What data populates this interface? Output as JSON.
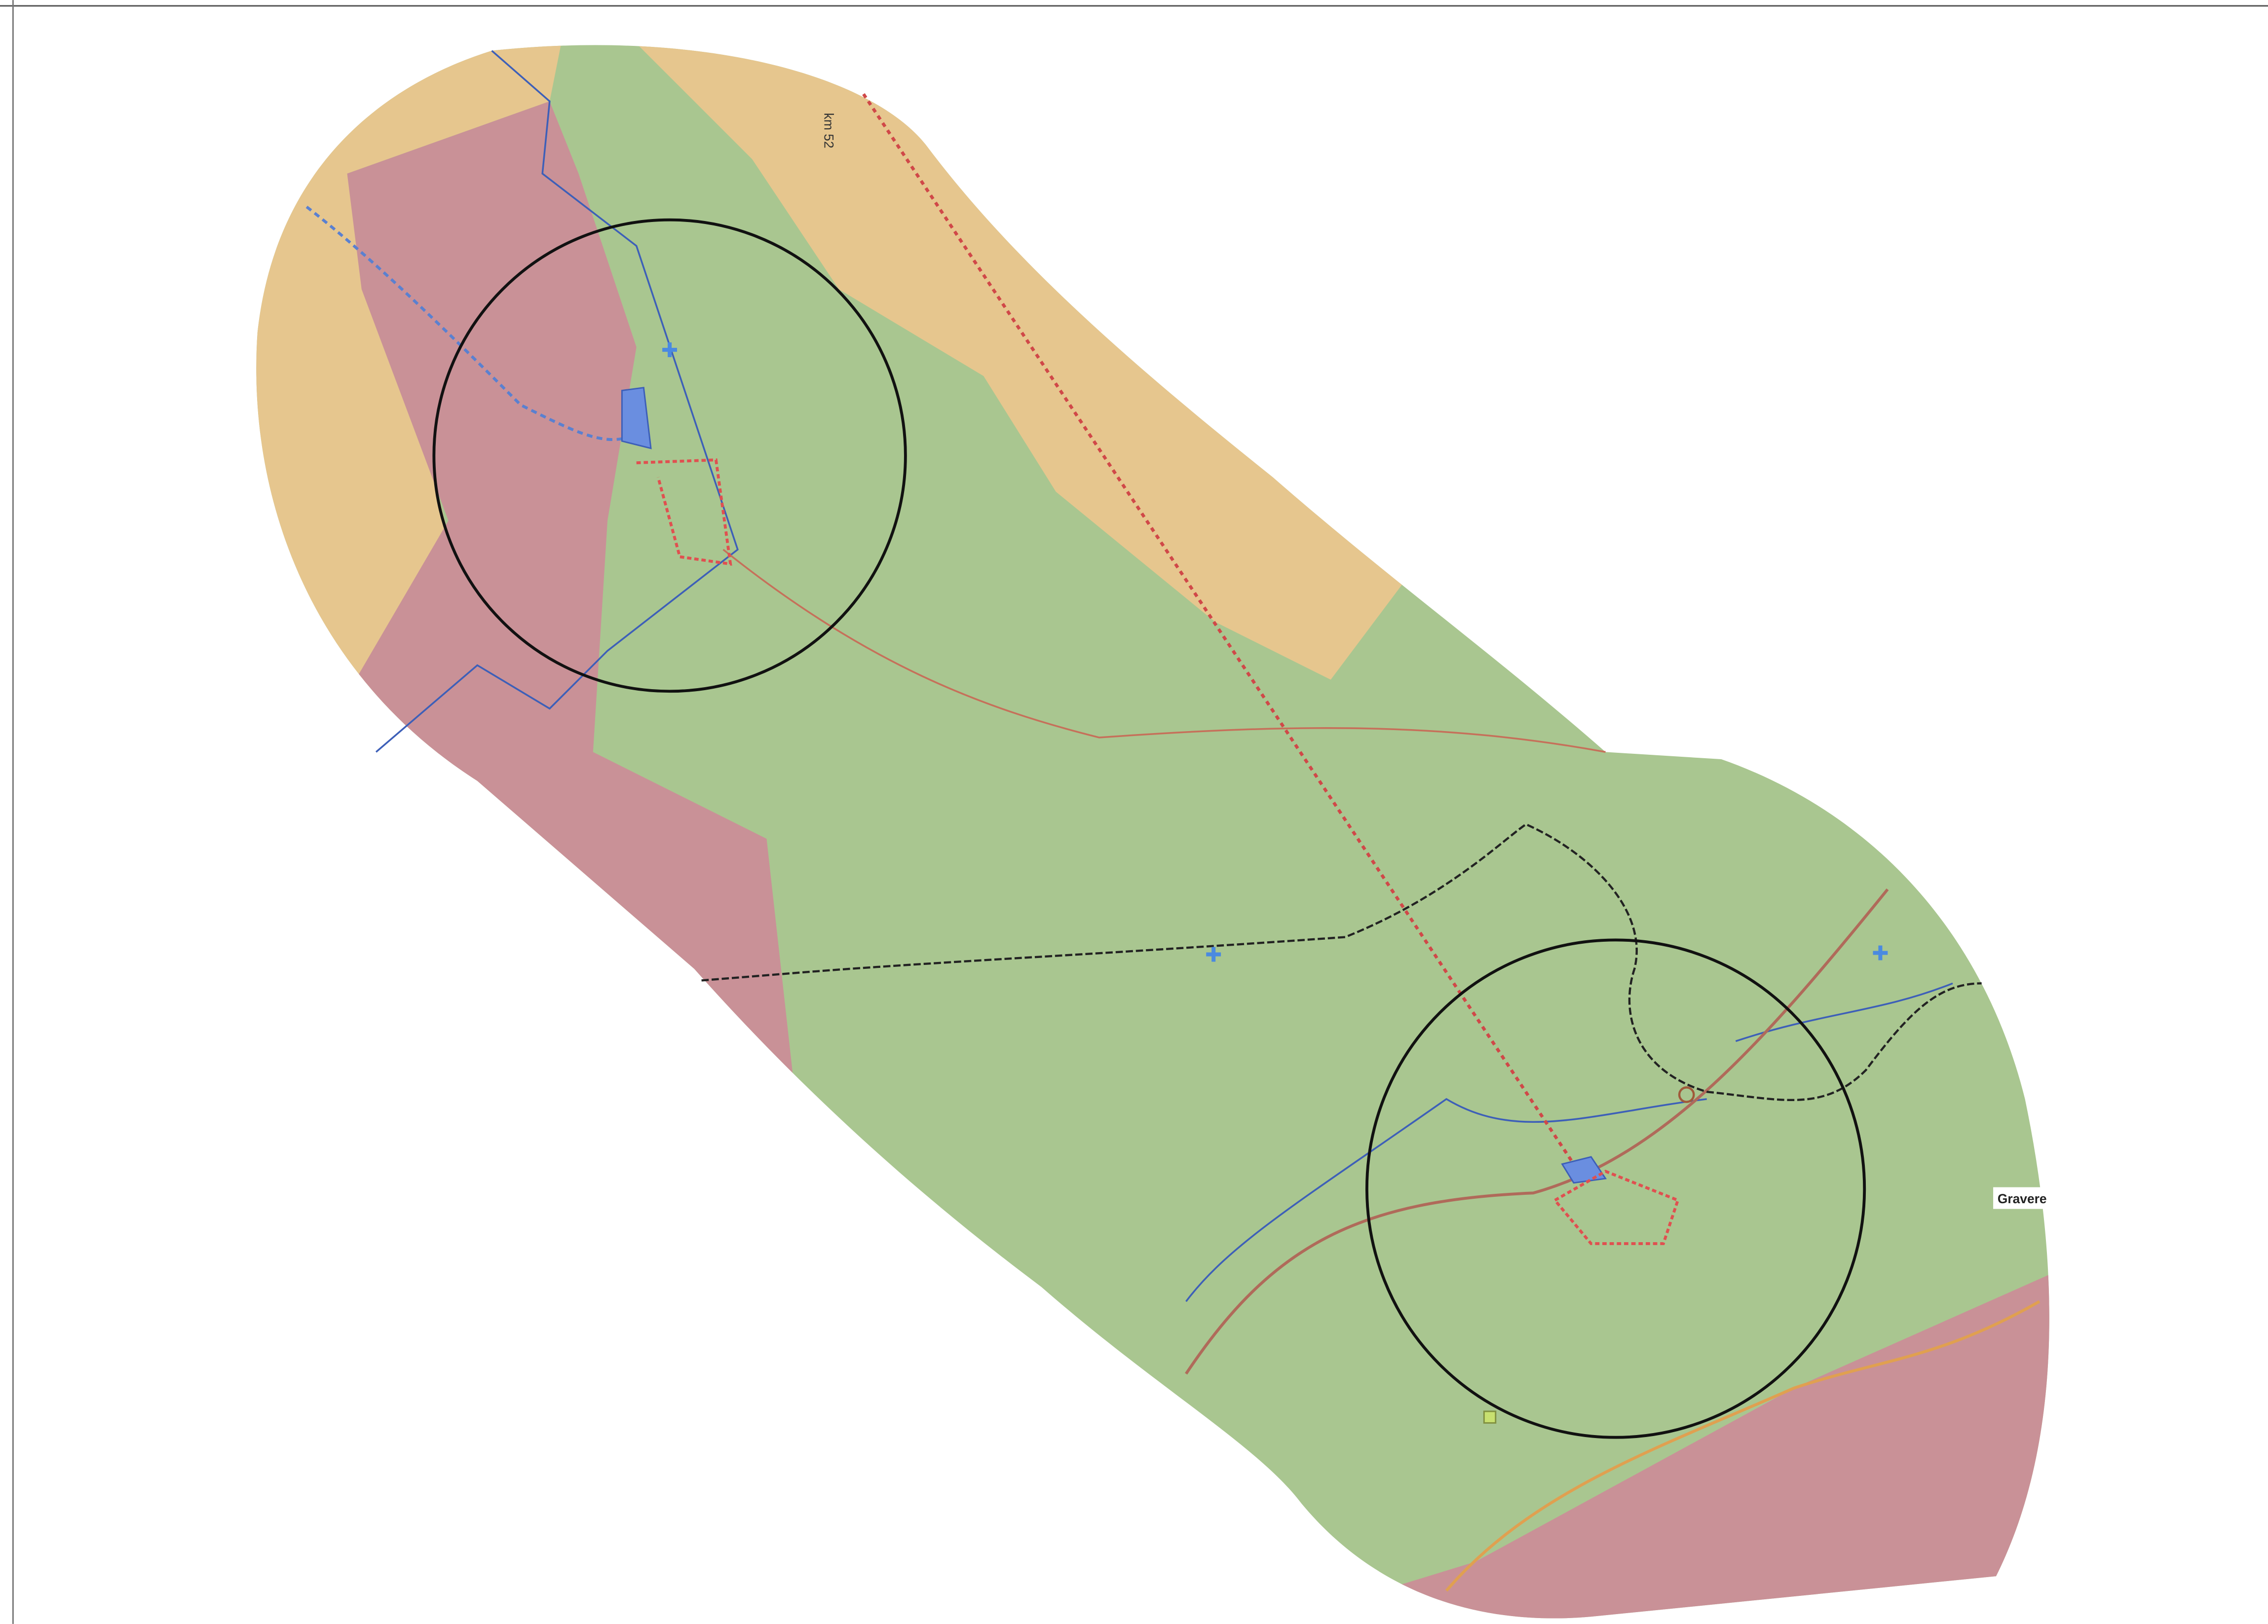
{
  "labels": {
    "km_marker": "km 52",
    "place": "Gravere"
  }
}
